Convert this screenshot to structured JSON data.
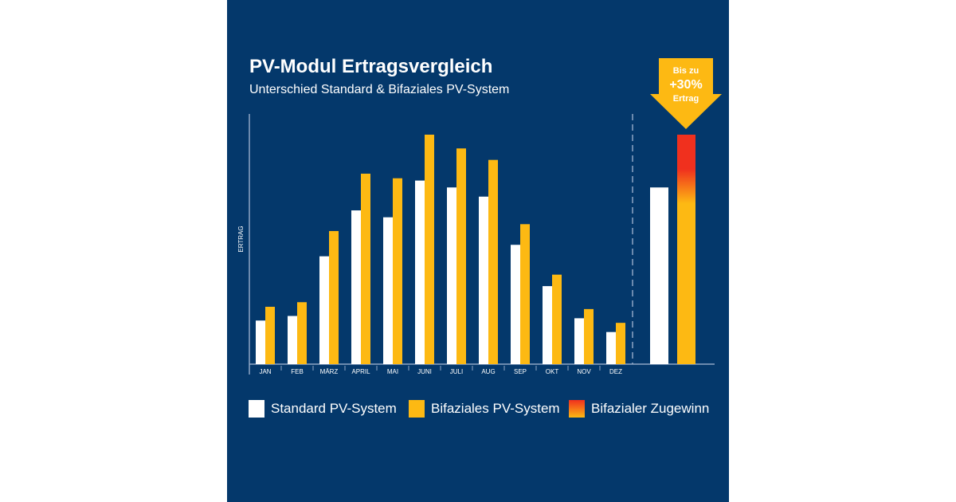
{
  "title": "PV-Modul Ertragsvergleich",
  "subtitle": "Unterschied Standard & Bifaziales PV-System",
  "colors": {
    "background": "#04386b",
    "standard": "#ffffff",
    "bifazial": "#fdb913",
    "zugewinn": "#f0301e"
  },
  "callout": {
    "line1": "Bis zu",
    "line2": "+30%",
    "line3": "Ertrag"
  },
  "chart_data": {
    "type": "bar",
    "ylabel": "ERTRAG",
    "xlabel": "",
    "ylim": [
      0,
      100
    ],
    "grid": false,
    "legend_position": "bottom",
    "categories": [
      "JAN",
      "FEB",
      "MÄRZ",
      "APRIL",
      "MAI",
      "JUNI",
      "JULI",
      "AUG",
      "SEP",
      "OKT",
      "NOV",
      "DEZ"
    ],
    "series": [
      {
        "name": "Standard PV-System",
        "values": [
          19,
          21,
          47,
          67,
          64,
          80,
          77,
          73,
          52,
          34,
          20,
          14
        ]
      },
      {
        "name": "Bifaziales PV-System",
        "values": [
          25,
          27,
          58,
          83,
          81,
          100,
          94,
          89,
          61,
          39,
          24,
          18
        ]
      }
    ],
    "summary": {
      "standard": 77,
      "bifazial": 100,
      "bifazial_gain_share": 0.23
    },
    "legend": [
      "Standard PV-System",
      "Bifaziales PV-System",
      "Bifazialer Zugewinn"
    ]
  }
}
